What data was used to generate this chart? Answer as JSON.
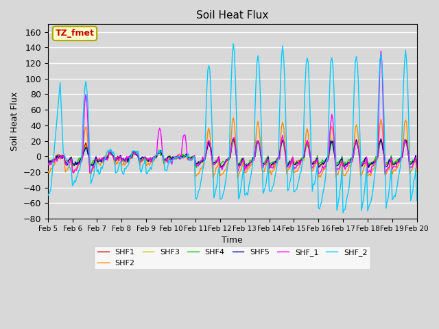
{
  "title": "Soil Heat Flux",
  "xlabel": "Time",
  "ylabel": "Soil Heat Flux",
  "ylim": [
    -80,
    170
  ],
  "xlim": [
    0,
    360
  ],
  "xtick_labels": [
    "Feb 5",
    "Feb 6",
    "Feb 7",
    "Feb 8",
    "Feb 9",
    "Feb 10",
    "Feb 11",
    "Feb 12",
    "Feb 13",
    "Feb 14",
    "Feb 15",
    "Feb 16",
    "Feb 17",
    "Feb 18",
    "Feb 19",
    "Feb 20"
  ],
  "xtick_positions": [
    0,
    24,
    48,
    72,
    96,
    120,
    144,
    168,
    192,
    216,
    240,
    264,
    288,
    312,
    336,
    360
  ],
  "legend_entries": [
    "SHF1",
    "SHF2",
    "SHF3",
    "SHF4",
    "SHF5",
    "SHF_1",
    "SHF_2"
  ],
  "colors": {
    "SHF1": "#cc0000",
    "SHF2": "#ff8800",
    "SHF3": "#cccc00",
    "SHF4": "#00cc00",
    "SHF5": "#0000aa",
    "SHF_1": "#ff00ff",
    "SHF_2": "#00ccff"
  },
  "annotation_text": "TZ_fmet",
  "annotation_color": "#cc0000",
  "annotation_bg": "#ffffcc",
  "annotation_border": "#aaa800",
  "plot_bg_color": "#d8d8d8",
  "fig_bg_color": "#d8d8d8",
  "grid_color": "#ffffff",
  "yticks": [
    -80,
    -60,
    -40,
    -20,
    0,
    20,
    40,
    60,
    80,
    100,
    120,
    140,
    160
  ]
}
